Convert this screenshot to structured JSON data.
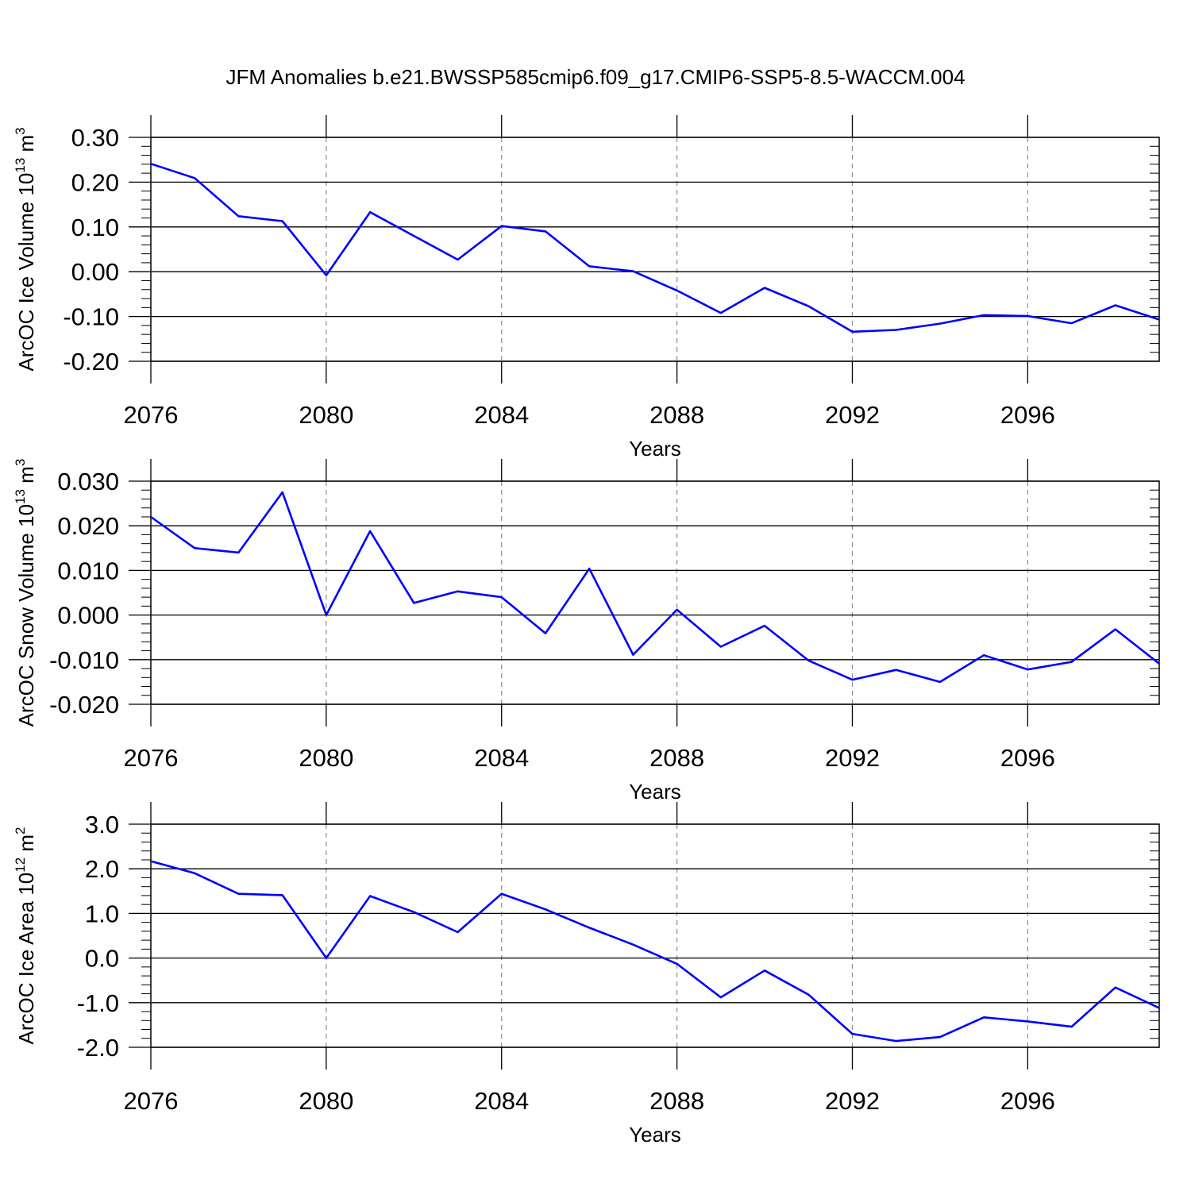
{
  "title": "JFM Anomalies b.e21.BWSSP585cmip6.f09_g17.CMIP6-SSP5-8.5-WACCM.004",
  "colors": {
    "line": "#0000ff",
    "axis": "#000000",
    "grid": "#8c8c8c"
  },
  "chart_data": [
    {
      "type": "line",
      "title": "",
      "xlabel": "Years",
      "ylabel": "ArcOC Ice Volume 10",
      "ylabel_exp": "13",
      "ylabel_unit": " m",
      "ylabel_unit_exp": "3",
      "xlim": [
        2076,
        2099
      ],
      "ylim": [
        -0.2,
        0.3
      ],
      "yticks": [
        -0.2,
        -0.1,
        0.0,
        0.1,
        0.2,
        0.3
      ],
      "yticklabels": [
        "-0.20",
        "-0.10",
        "0.00",
        "0.10",
        "0.20",
        "0.30"
      ],
      "y_minor_step": 0.02,
      "xticks": [
        2076,
        2080,
        2084,
        2088,
        2092,
        2096
      ],
      "xticklabels": [
        "2076",
        "2080",
        "2084",
        "2088",
        "2092",
        "2096"
      ],
      "grid": "vertical-dashed",
      "x": [
        2076,
        2077,
        2078,
        2079,
        2080,
        2081,
        2082,
        2083,
        2084,
        2085,
        2086,
        2087,
        2088,
        2089,
        2090,
        2091,
        2092,
        2093,
        2094,
        2095,
        2096,
        2097,
        2098,
        2099
      ],
      "series": [
        {
          "values": [
            0.241,
            0.209,
            0.124,
            0.113,
            -0.008,
            0.133,
            0.08,
            0.027,
            0.102,
            0.09,
            0.012,
            0.001,
            -0.042,
            -0.092,
            -0.036,
            -0.077,
            -0.134,
            -0.13,
            -0.116,
            -0.097,
            -0.099,
            -0.115,
            -0.075,
            -0.107
          ]
        }
      ]
    },
    {
      "type": "line",
      "title": "",
      "xlabel": "Years",
      "ylabel": "ArcOC Snow Volume 10",
      "ylabel_exp": "13",
      "ylabel_unit": " m",
      "ylabel_unit_exp": "3",
      "xlim": [
        2076,
        2099
      ],
      "ylim": [
        -0.02,
        0.03
      ],
      "yticks": [
        -0.02,
        -0.01,
        0.0,
        0.01,
        0.02,
        0.03
      ],
      "yticklabels": [
        "-0.020",
        "-0.010",
        "0.000",
        "0.010",
        "0.020",
        "0.030"
      ],
      "y_minor_step": 0.002,
      "xticks": [
        2076,
        2080,
        2084,
        2088,
        2092,
        2096
      ],
      "xticklabels": [
        "2076",
        "2080",
        "2084",
        "2088",
        "2092",
        "2096"
      ],
      "grid": "vertical-dashed",
      "x": [
        2076,
        2077,
        2078,
        2079,
        2080,
        2081,
        2082,
        2083,
        2084,
        2085,
        2086,
        2087,
        2088,
        2089,
        2090,
        2091,
        2092,
        2093,
        2094,
        2095,
        2096,
        2097,
        2098,
        2099
      ],
      "series": [
        {
          "values": [
            0.022,
            0.015,
            0.014,
            0.0275,
            0.0,
            0.0188,
            0.0027,
            0.0053,
            0.004,
            -0.0041,
            0.0104,
            -0.0089,
            0.0012,
            -0.0071,
            -0.0024,
            -0.0102,
            -0.0145,
            -0.0123,
            -0.015,
            -0.009,
            -0.0122,
            -0.0105,
            -0.0032,
            -0.0109
          ]
        }
      ]
    },
    {
      "type": "line",
      "title": "",
      "xlabel": "Years",
      "ylabel": "ArcOC Ice Area 10",
      "ylabel_exp": "12",
      "ylabel_unit": " m",
      "ylabel_unit_exp": "2",
      "xlim": [
        2076,
        2099
      ],
      "ylim": [
        -2.0,
        3.0
      ],
      "yticks": [
        -2.0,
        -1.0,
        0.0,
        1.0,
        2.0,
        3.0
      ],
      "yticklabels": [
        "-2.0",
        "-1.0",
        "0.0",
        "1.0",
        "2.0",
        "3.0"
      ],
      "y_minor_step": 0.2,
      "xticks": [
        2076,
        2080,
        2084,
        2088,
        2092,
        2096
      ],
      "xticklabels": [
        "2076",
        "2080",
        "2084",
        "2088",
        "2092",
        "2096"
      ],
      "grid": "vertical-dashed",
      "x": [
        2076,
        2077,
        2078,
        2079,
        2080,
        2081,
        2082,
        2083,
        2084,
        2085,
        2086,
        2087,
        2088,
        2089,
        2090,
        2091,
        2092,
        2093,
        2094,
        2095,
        2096,
        2097,
        2098,
        2099
      ],
      "series": [
        {
          "values": [
            2.17,
            1.9,
            1.44,
            1.41,
            0.0,
            1.39,
            1.03,
            0.58,
            1.44,
            1.09,
            0.68,
            0.3,
            -0.13,
            -0.88,
            -0.28,
            -0.82,
            -1.7,
            -1.86,
            -1.77,
            -1.33,
            -1.42,
            -1.54,
            -0.66,
            -1.12
          ]
        }
      ]
    }
  ]
}
